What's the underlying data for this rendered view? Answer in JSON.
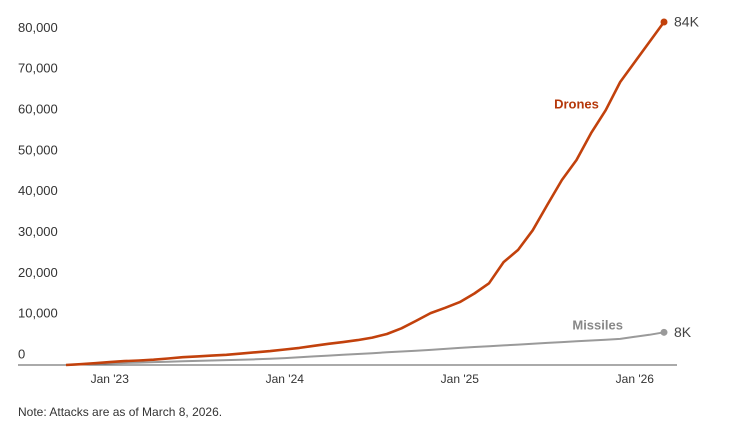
{
  "chart_data": {
    "type": "line",
    "x": [
      "2022-10",
      "2022-11",
      "2022-12",
      "2023-01",
      "2023-02",
      "2023-03",
      "2023-04",
      "2023-05",
      "2023-06",
      "2023-07",
      "2023-08",
      "2023-09",
      "2023-10",
      "2023-11",
      "2023-12",
      "2024-01",
      "2024-02",
      "2024-03",
      "2024-04",
      "2024-05",
      "2024-06",
      "2024-07",
      "2024-08",
      "2024-09",
      "2024-10",
      "2024-11",
      "2024-12",
      "2025-01",
      "2025-02",
      "2025-03",
      "2025-04",
      "2025-05",
      "2025-06",
      "2025-07",
      "2025-08",
      "2025-09",
      "2025-10",
      "2025-11",
      "2025-12",
      "2026-01",
      "2026-02",
      "2026-03"
    ],
    "series": [
      {
        "name": "Drones",
        "color": "#c2410c",
        "values": [
          0,
          200,
          450,
          700,
          950,
          1100,
          1300,
          1600,
          1900,
          2100,
          2300,
          2500,
          2800,
          3100,
          3400,
          3800,
          4200,
          4700,
          5200,
          5600,
          6100,
          6700,
          7600,
          9000,
          10800,
          12700,
          14000,
          15400,
          17500,
          20000,
          25200,
          28200,
          33000,
          39200,
          45300,
          50200,
          56800,
          62400,
          69300,
          74200,
          79100,
          84000
        ],
        "value_labels": [
          null,
          null,
          null,
          null,
          null,
          null,
          null,
          null,
          null,
          null,
          null,
          null,
          null,
          null,
          null,
          null,
          null,
          null,
          null,
          null,
          null,
          null,
          null,
          null,
          null,
          null,
          null,
          null,
          null,
          null,
          null,
          null,
          null,
          null,
          null,
          null,
          null,
          null,
          null,
          null,
          null,
          "84K"
        ]
      },
      {
        "name": "Missiles",
        "color": "#9a9a9a",
        "values": [
          0,
          150,
          300,
          400,
          500,
          600,
          700,
          800,
          900,
          1000,
          1100,
          1200,
          1300,
          1400,
          1550,
          1700,
          1900,
          2100,
          2300,
          2500,
          2700,
          2900,
          3100,
          3300,
          3500,
          3700,
          3950,
          4200,
          4400,
          4600,
          4800,
          5000,
          5200,
          5400,
          5600,
          5800,
          6000,
          6200,
          6400,
          6900,
          7400,
          8000
        ],
        "value_labels": [
          null,
          null,
          null,
          null,
          null,
          null,
          null,
          null,
          null,
          null,
          null,
          null,
          null,
          null,
          null,
          null,
          null,
          null,
          null,
          null,
          null,
          null,
          null,
          null,
          null,
          null,
          null,
          null,
          null,
          null,
          null,
          null,
          null,
          null,
          null,
          null,
          null,
          null,
          null,
          null,
          null,
          "8K"
        ]
      }
    ],
    "xlim": [
      "2022-10",
      "2026-03"
    ],
    "xticks": [
      {
        "value": "2023-01",
        "label": "Jan '23"
      },
      {
        "value": "2024-01",
        "label": "Jan '24"
      },
      {
        "value": "2025-01",
        "label": "Jan '25"
      },
      {
        "value": "2026-01",
        "label": "Jan '26"
      }
    ],
    "ylim": [
      0,
      84000
    ],
    "yticks": [
      0,
      {
        "value": 10000,
        "label": "10,000"
      },
      {
        "value": 20000,
        "label": "20,000"
      },
      {
        "value": 30000,
        "label": "30,000"
      },
      {
        "value": 40000,
        "label": "40,000"
      },
      {
        "value": 50000,
        "label": "50,000"
      },
      {
        "value": 60000,
        "label": "60,000"
      },
      {
        "value": 70000,
        "label": "70,000"
      },
      {
        "value": 80000,
        "label": "80,000"
      }
    ],
    "note": "Note: Attacks are as of March 8, 2026."
  }
}
